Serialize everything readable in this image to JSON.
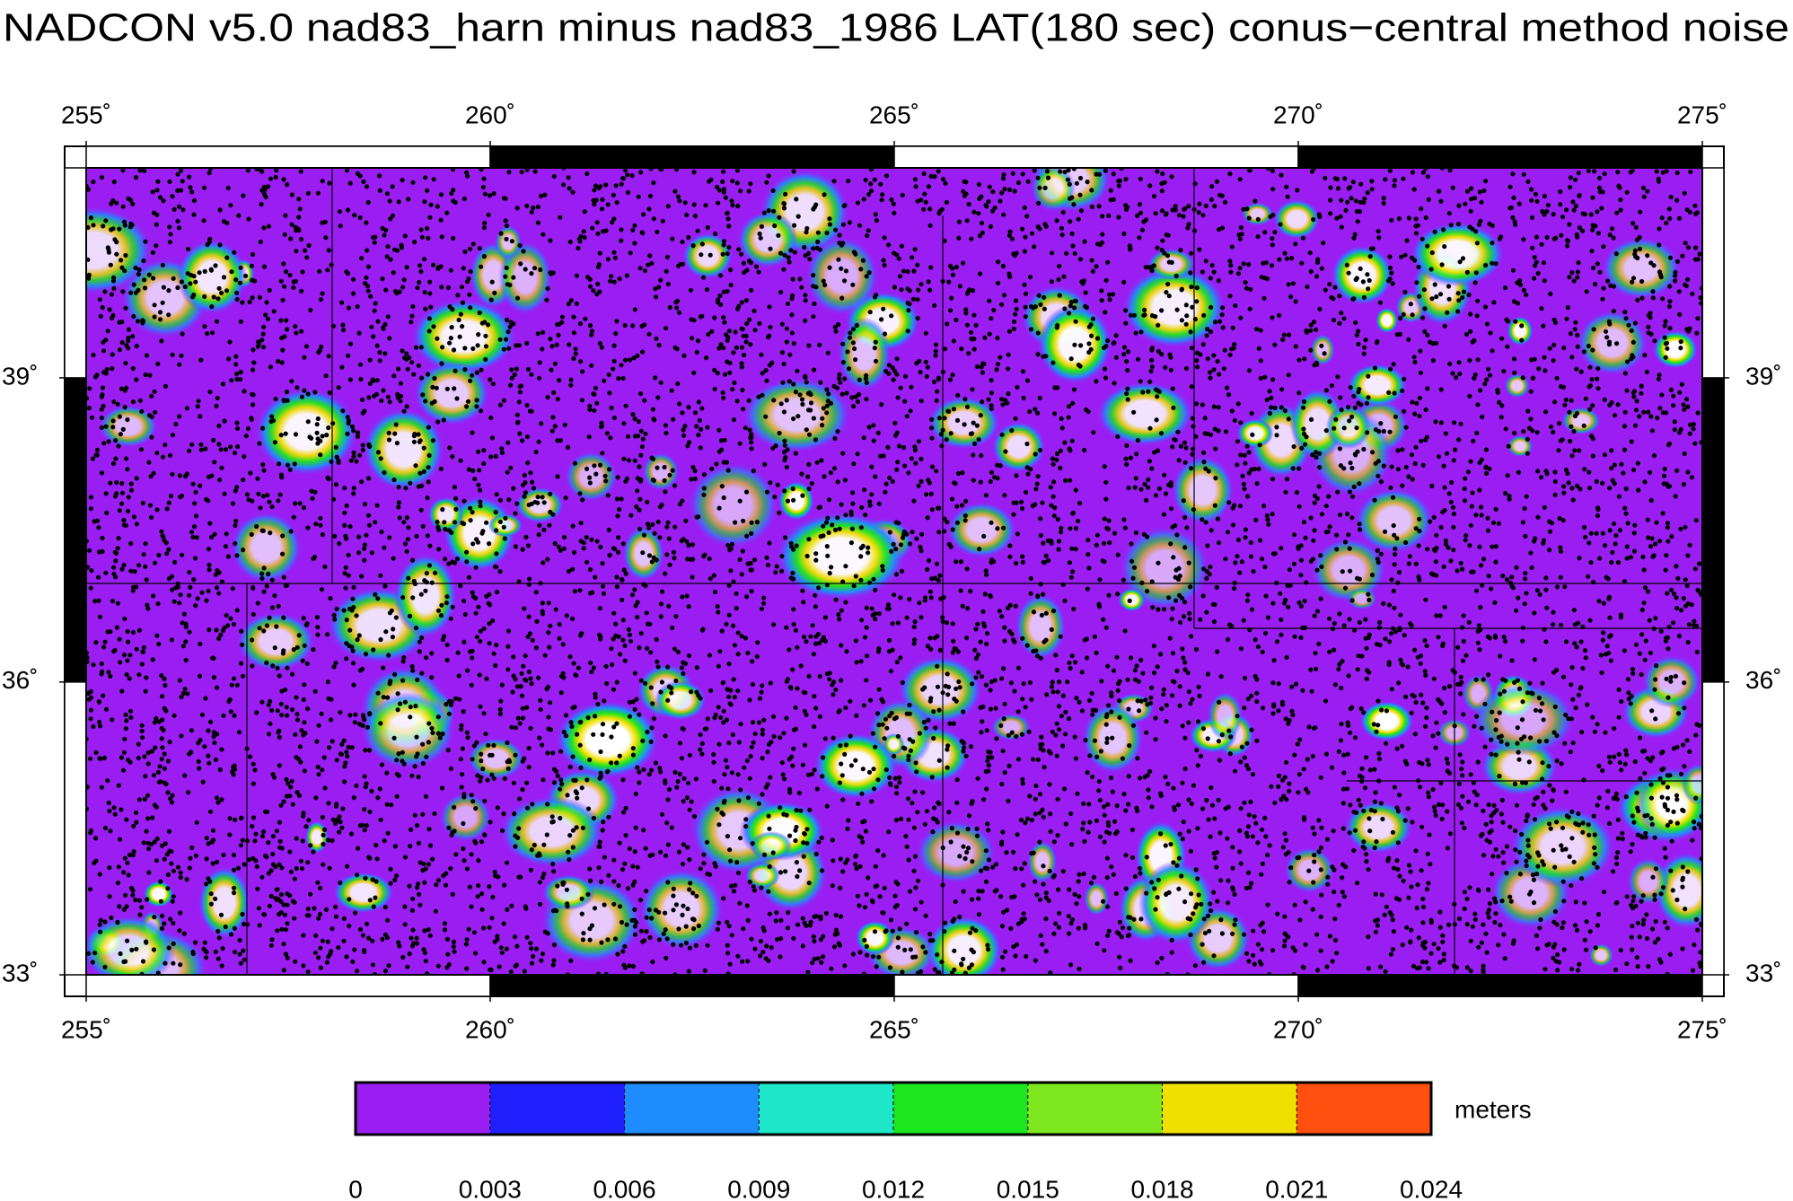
{
  "chart_data": {
    "type": "map",
    "title": "NADCON v5.0 nad83_harn minus nad83_1986 LAT(180 sec) conus−central method noise",
    "xlim": [
      255,
      275
    ],
    "xticks": [
      {
        "value": 255,
        "label": "255˚"
      },
      {
        "value": 260,
        "label": "260˚"
      },
      {
        "value": 265,
        "label": "265˚"
      },
      {
        "value": 270,
        "label": "270˚"
      },
      {
        "value": 275,
        "label": "275˚"
      }
    ],
    "ylim": [
      33,
      41
    ],
    "yticks": [
      {
        "value": 33,
        "label": "33˚"
      },
      {
        "value": 36,
        "label": "36˚"
      },
      {
        "value": 39,
        "label": "39˚"
      }
    ],
    "projection": "mercator",
    "colorbar": {
      "label": "meters",
      "clim": [
        0,
        0.024
      ],
      "ticks": [
        0,
        0.003,
        0.006,
        0.009,
        0.012,
        0.015,
        0.018,
        0.021,
        0.024
      ],
      "colors": [
        "#9a1ef2",
        "#2020ff",
        "#1e8cff",
        "#1ee6c8",
        "#1ee61e",
        "#7ee61e",
        "#f0e000",
        "#ff5010"
      ]
    }
  }
}
